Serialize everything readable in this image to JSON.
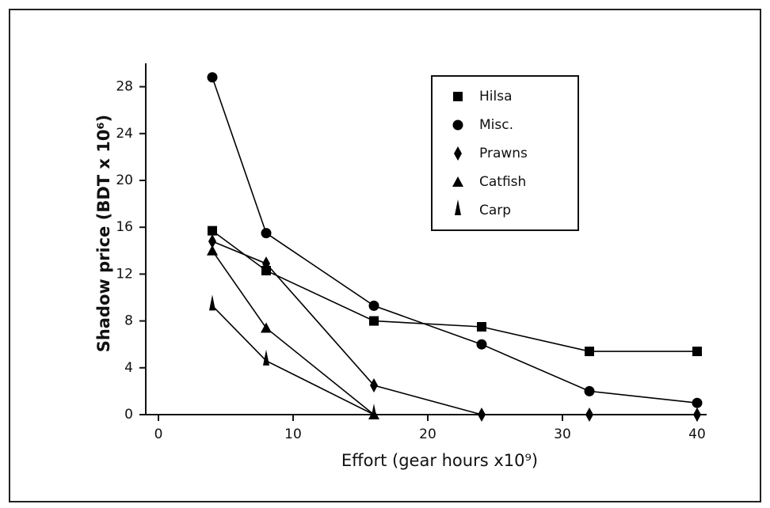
{
  "chart_data": {
    "type": "line",
    "x_label": "Effort (gear hours x10⁹)",
    "y_label": "Shadow price (BDT x 10⁶)",
    "xlim": [
      0,
      40
    ],
    "xticks": [
      0,
      10,
      20,
      30,
      40
    ],
    "ylim": [
      0,
      30
    ],
    "yticks": [
      0,
      4,
      8,
      12,
      16,
      20,
      24,
      28
    ],
    "grid": false,
    "legend": "upper right",
    "series": [
      {
        "name": "Hilsa",
        "color": "#000000",
        "marker": "square",
        "x": [
          4,
          8,
          16,
          24,
          32,
          40
        ],
        "values": [
          15.7,
          12.3,
          8.0,
          7.5,
          5.4,
          5.4
        ]
      },
      {
        "name": "Misc.",
        "color": "#000000",
        "marker": "circle",
        "x": [
          4,
          8,
          16,
          24,
          32,
          40
        ],
        "values": [
          28.8,
          15.5,
          9.3,
          6.0,
          2.0,
          1.0
        ]
      },
      {
        "name": "Prawns",
        "color": "#000000",
        "marker": "diamond",
        "x": [
          4,
          8,
          16,
          24,
          32,
          40
        ],
        "values": [
          14.8,
          12.9,
          2.5,
          0,
          0,
          0
        ]
      },
      {
        "name": "Catfish",
        "color": "#000000",
        "marker": "triangle",
        "x": [
          4,
          8,
          16
        ],
        "values": [
          14.0,
          7.4,
          0
        ]
      },
      {
        "name": "Carp",
        "color": "#000000",
        "marker": "spike",
        "x": [
          4,
          8,
          16
        ],
        "values": [
          9.3,
          4.6,
          0
        ]
      }
    ]
  }
}
